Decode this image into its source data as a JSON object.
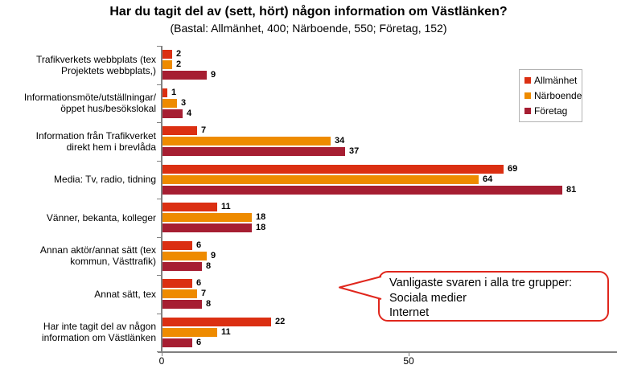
{
  "chart_data": {
    "type": "bar",
    "orientation": "horizontal",
    "title": "Har du tagit del av (sett, hört) någon information om Västlänken?",
    "subtitle": "(Bastal: Allmänhet, 400; Närboende, 550; Företag, 152)",
    "categories": [
      [
        "Trafikverkets webbplats (tex",
        "Projektets webbplats,)"
      ],
      [
        "Informationsmöte/utställningar/",
        "öppet hus/besökslokal"
      ],
      [
        "Information från Trafikverket",
        "direkt hem i brevlåda"
      ],
      [
        "Media: Tv, radio, tidning"
      ],
      [
        "Vänner, bekanta, kolleger"
      ],
      [
        "Annan aktör/annat sätt (tex",
        "kommun, Västtrafik)"
      ],
      [
        "Annat sätt, tex"
      ],
      [
        "Har inte tagit del av någon",
        "information om Västlänken"
      ]
    ],
    "series": [
      {
        "name": "Allmänhet",
        "color": "#db2f12",
        "values": [
          2,
          1,
          7,
          69,
          11,
          6,
          6,
          22
        ]
      },
      {
        "name": "Närboende",
        "color": "#ee8b00",
        "values": [
          2,
          3,
          34,
          64,
          18,
          9,
          7,
          11
        ]
      },
      {
        "name": "Företag",
        "color": "#a61e32",
        "values": [
          9,
          4,
          37,
          81,
          18,
          8,
          8,
          6
        ]
      }
    ],
    "x_ticks": [
      "0",
      "50"
    ],
    "xlim": [
      0,
      92
    ],
    "grid": false,
    "legend_position": "right-top",
    "axis_color": "#808080"
  },
  "callout": {
    "lines": [
      "Vanligaste svaren i alla tre grupper:",
      "Sociala medier",
      "Internet"
    ],
    "border_color": "#e0261c"
  }
}
